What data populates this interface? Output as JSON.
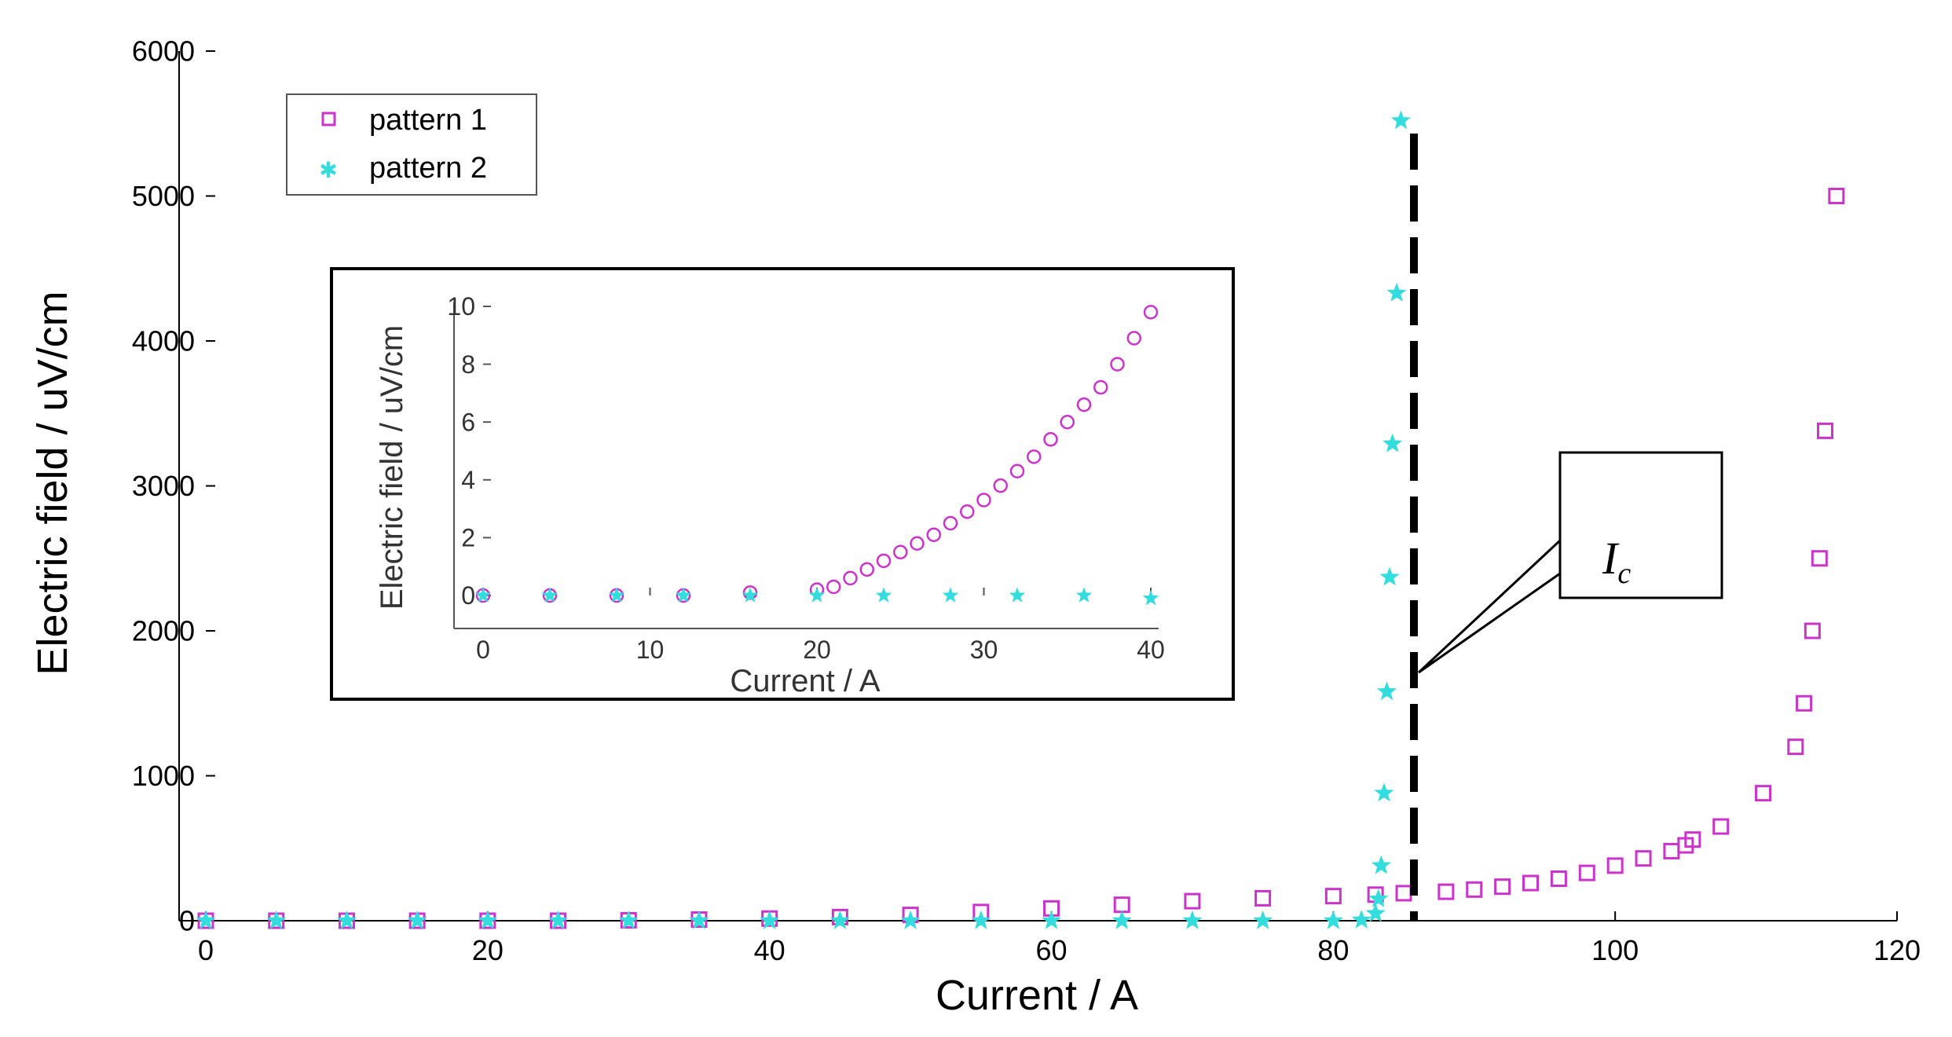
{
  "chart_data": [
    {
      "type": "scatter",
      "xlabel": "Current / A",
      "ylabel": "Electric field / uV/cm",
      "xlim": [
        0,
        120
      ],
      "ylim": [
        0,
        6000
      ],
      "x_ticks": [
        "0",
        "20",
        "40",
        "60",
        "80",
        "100",
        "120"
      ],
      "y_ticks": [
        "0",
        "1000",
        "2000",
        "3000",
        "4000",
        "5000",
        "6000"
      ],
      "grid": false,
      "legend_position": "top-left",
      "series": [
        {
          "name": "pattern 1",
          "marker": "open-square",
          "color": "#cc33cc",
          "x": [
            0,
            5,
            10,
            15,
            20,
            25,
            30,
            35,
            40,
            45,
            50,
            55,
            60,
            65,
            70,
            75,
            80,
            83,
            85,
            88,
            90,
            92,
            94,
            96,
            98,
            100,
            102,
            104,
            105,
            105.5,
            107.5,
            110.5,
            112.8,
            113.4,
            114,
            114.5,
            114.9,
            115.7
          ],
          "y": [
            0,
            0,
            0,
            0,
            0,
            0,
            3,
            8,
            15,
            25,
            40,
            60,
            85,
            110,
            135,
            155,
            170,
            180,
            190,
            200,
            215,
            235,
            260,
            290,
            330,
            380,
            430,
            480,
            520,
            560,
            650,
            880,
            1200,
            1500,
            2000,
            2500,
            3380,
            5000
          ]
        },
        {
          "name": "pattern 2",
          "marker": "star",
          "color": "#33dddd",
          "x": [
            0,
            5,
            10,
            15,
            20,
            25,
            30,
            35,
            40,
            45,
            50,
            55,
            60,
            65,
            70,
            75,
            80,
            82,
            83,
            83.2,
            83.4,
            83.6,
            83.8,
            84,
            84.2,
            84.5,
            84.8
          ],
          "y": [
            0,
            0,
            0,
            0,
            0,
            0,
            0,
            0,
            0,
            0,
            0,
            0,
            0,
            0,
            0,
            0,
            0,
            5,
            50,
            150,
            380,
            880,
            1580,
            2370,
            3290,
            4330,
            5520
          ]
        }
      ],
      "annotations": [
        "I",
        "c"
      ]
    },
    {
      "type": "scatter",
      "xlabel": "Current / A",
      "ylabel": "Electric field / uV/cm",
      "xlim": [
        0,
        40
      ],
      "ylim": [
        0,
        10
      ],
      "x_ticks": [
        "0",
        "10",
        "20",
        "30",
        "40"
      ],
      "y_ticks": [
        "0",
        "2",
        "4",
        "6",
        "8",
        "10"
      ],
      "series": [
        {
          "name": "pattern 1",
          "marker": "open-circle",
          "color": "#cc33cc",
          "x": [
            0,
            4,
            8,
            12,
            16,
            20,
            21,
            22,
            23,
            24,
            25,
            26,
            27,
            28,
            29,
            30,
            31,
            32,
            33,
            34,
            35,
            36,
            37,
            38,
            39,
            40
          ],
          "y": [
            0,
            0,
            0,
            0,
            0.1,
            0.2,
            0.3,
            0.6,
            0.9,
            1.2,
            1.5,
            1.8,
            2.1,
            2.5,
            2.9,
            3.3,
            3.8,
            4.3,
            4.8,
            5.4,
            6.0,
            6.6,
            7.2,
            8.0,
            8.9,
            9.8
          ]
        },
        {
          "name": "pattern 2",
          "marker": "star",
          "color": "#33dddd",
          "x": [
            0,
            4,
            8,
            12,
            16,
            20,
            24,
            28,
            32,
            36,
            40
          ],
          "y": [
            0,
            0,
            0,
            0,
            0,
            0,
            0,
            0,
            0,
            0,
            -0.1
          ]
        }
      ]
    }
  ]
}
